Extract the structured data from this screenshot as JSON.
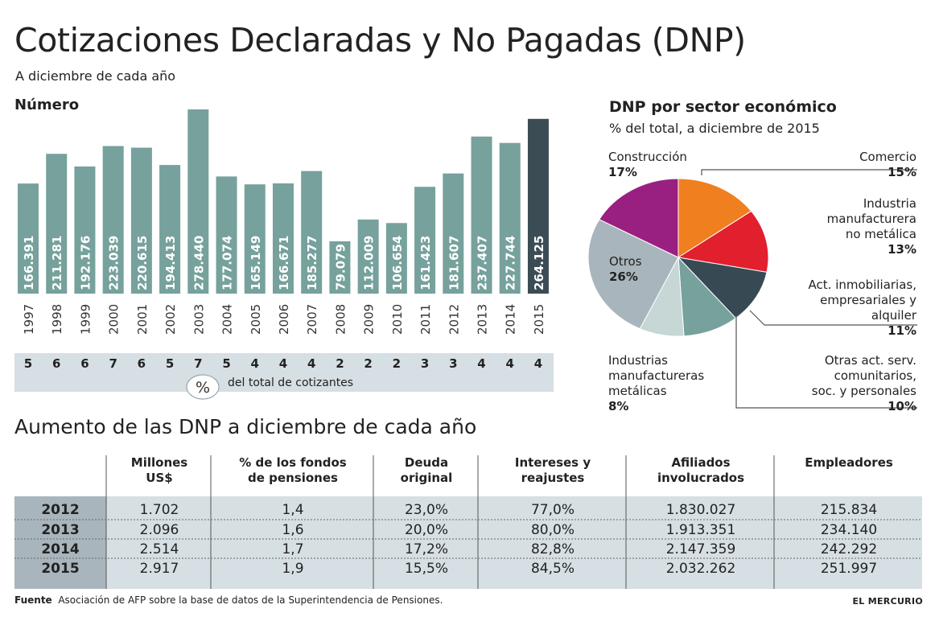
{
  "header": {
    "title": "Cotizaciones Declaradas y No Pagadas (DNP)",
    "subtitle": "A diciembre de cada año"
  },
  "chart_data": [
    {
      "type": "bar",
      "title": "Número",
      "categories": [
        "1997",
        "1998",
        "1999",
        "2000",
        "2001",
        "2002",
        "2003",
        "2004",
        "2005",
        "2006",
        "2007",
        "2008",
        "2009",
        "2010",
        "2011",
        "2012",
        "2013",
        "2014",
        "2015"
      ],
      "values": [
        166391,
        211281,
        192176,
        223039,
        220615,
        194413,
        278440,
        177074,
        165149,
        166671,
        185277,
        79079,
        112009,
        106654,
        161423,
        181607,
        237407,
        227744,
        264125
      ],
      "value_labels": [
        "166.391",
        "211.281",
        "192.176",
        "223.039",
        "220.615",
        "194.413",
        "278.440",
        "177.074",
        "165.149",
        "166.671",
        "185.277",
        "79.079",
        "112.009",
        "106.654",
        "161.423",
        "181.607",
        "237.407",
        "227.744",
        "264.125"
      ],
      "pct_of_total": [
        "5",
        "6",
        "6",
        "7",
        "6",
        "5",
        "7",
        "5",
        "4",
        "4",
        "4",
        "2",
        "2",
        "2",
        "3",
        "3",
        "4",
        "4",
        "4"
      ],
      "pct_symbol": "%",
      "pct_caption": "del total de cotizantes",
      "colors": {
        "bar": "#76a19c",
        "highlight": "#3b4c55",
        "band": "#d6dfe3"
      }
    },
    {
      "type": "pie",
      "title": "DNP por sector económico",
      "subtitle": "% del total, a diciembre de 2015",
      "slices": [
        {
          "label": "Comercio",
          "value": 15,
          "pct": "15%",
          "color": "#f07f20"
        },
        {
          "label": "Industria manufacturera no metálica",
          "value": 13,
          "pct": "13%",
          "color": "#e21f2d"
        },
        {
          "label": "Act. inmobiliarias, empresariales y alquiler",
          "value": 11,
          "pct": "11%",
          "color": "#374a54"
        },
        {
          "label": "Otras act. serv. comunitarios, soc. y personales",
          "value": 10,
          "pct": "10%",
          "color": "#76a19c"
        },
        {
          "label": "Industrias manufactureras metálicas",
          "value": 8,
          "pct": "8%",
          "color": "#c6d7d5"
        },
        {
          "label": "Otros",
          "value": 26,
          "pct": "26%",
          "color": "#a9b5bc"
        },
        {
          "label": "Construcción",
          "value": 17,
          "pct": "17%",
          "color": "#992081"
        }
      ]
    },
    {
      "type": "table",
      "title": "Aumento de las DNP a diciembre de cada año",
      "columns": [
        "Millones US$",
        "% de los fondos de pensiones",
        "Deuda original",
        "Intereses y reajustes",
        "Afiliados involucrados",
        "Empleadores"
      ],
      "rows": [
        {
          "year": "2012",
          "cells": [
            "1.702",
            "1,4",
            "23,0%",
            "77,0%",
            "1.830.027",
            "215.834"
          ]
        },
        {
          "year": "2013",
          "cells": [
            "2.096",
            "1,6",
            "20,0%",
            "80,0%",
            "1.913.351",
            "234.140"
          ]
        },
        {
          "year": "2014",
          "cells": [
            "2.514",
            "1,7",
            "17,2%",
            "82,8%",
            "2.147.359",
            "242.292"
          ]
        },
        {
          "year": "2015",
          "cells": [
            "2.917",
            "1,9",
            "15,5%",
            "84,5%",
            "2.032.262",
            "251.997"
          ]
        }
      ]
    }
  ],
  "table_header_lines": [
    [
      "Millones",
      "US$"
    ],
    [
      "% de los fondos",
      "de pensiones"
    ],
    [
      "Deuda",
      "original"
    ],
    [
      "Intereses y",
      "reajustes"
    ],
    [
      "Afiliados",
      "involucrados"
    ],
    [
      "Empleadores",
      ""
    ]
  ],
  "pie_label_lines": {
    "comercio": [
      "Comercio"
    ],
    "industria_no_metalica": [
      "Industria",
      "manufacturera",
      "no metálica"
    ],
    "inmobiliarias": [
      "Act. inmobiliarias,",
      "empresariales y",
      "alquiler"
    ],
    "otras_act": [
      "Otras act. serv.",
      "comunitarios,",
      "soc. y personales"
    ],
    "metalicas": [
      "Industrias",
      "manufactureras",
      "metálicas"
    ],
    "otros": [
      "Otros"
    ],
    "construccion": [
      "Construcción"
    ]
  },
  "footer": {
    "source_label": "Fuente",
    "source_text": "Asociación de AFP sobre la base de datos de la Superintendencia de Pensiones.",
    "brand": "EL MERCURIO"
  }
}
